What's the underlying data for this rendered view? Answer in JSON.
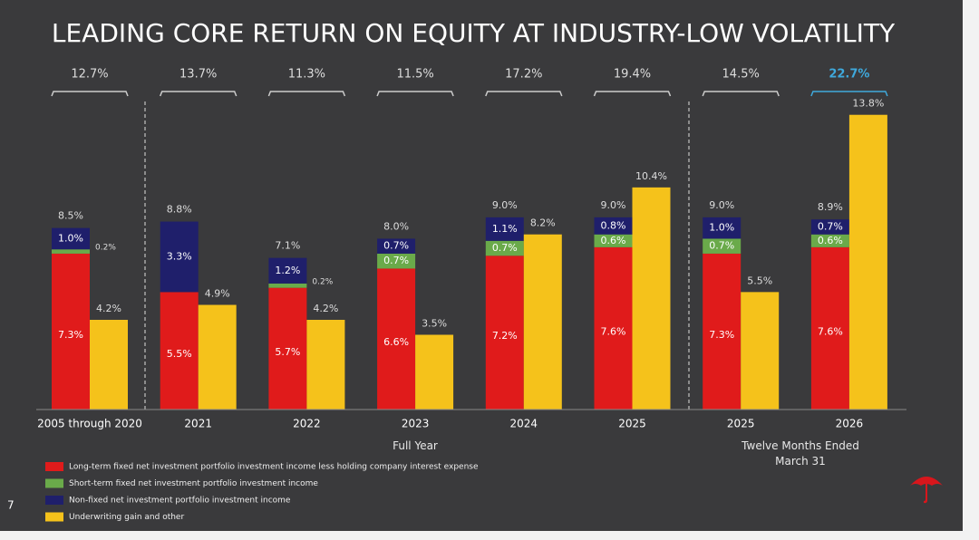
{
  "chart_data": {
    "type": "stacked_bar_with_side_bar",
    "title": "LEADING CORE RETURN ON EQUITY AT INDUSTRY-LOW VOLATILITY",
    "categories": [
      "2005 through 2020",
      "2021",
      "2022",
      "2023",
      "2024",
      "2025",
      "2025",
      "2026"
    ],
    "series": [
      {
        "name": "Long-term fixed net investment portfolio investment income less holding company interest expense",
        "color": "#e01b1b",
        "stack": "left",
        "values": [
          7.3,
          5.5,
          5.7,
          6.6,
          7.2,
          7.6,
          7.3,
          7.6
        ],
        "value_labels": [
          "7.3%",
          "5.5%",
          "5.7%",
          "6.6%",
          "7.2%",
          "7.6%",
          "7.3%",
          "7.6%"
        ]
      },
      {
        "name": "Short-term fixed net investment portfolio investment income",
        "color": "#6aaa4a",
        "stack": "left",
        "values": [
          0.2,
          null,
          0.2,
          0.7,
          0.7,
          0.6,
          0.7,
          0.6
        ],
        "value_labels": [
          "0.2%",
          null,
          "0.2%",
          "0.7%",
          "0.7%",
          "0.6%",
          "0.7%",
          "0.6%"
        ]
      },
      {
        "name": "Non-fixed net investment portfolio investment income",
        "color": "#1f1f6b",
        "stack": "left",
        "values": [
          1.0,
          3.3,
          1.2,
          0.7,
          1.1,
          0.8,
          1.0,
          0.7
        ],
        "value_labels": [
          "1.0%",
          "3.3%",
          "1.2%",
          "0.7%",
          "1.1%",
          "0.8%",
          "1.0%",
          "0.7%"
        ]
      },
      {
        "name": "Underwriting gain and other",
        "color": "#f5c21b",
        "stack": "right",
        "values": [
          4.2,
          4.9,
          4.2,
          3.5,
          8.2,
          10.4,
          5.5,
          13.8
        ],
        "value_labels": [
          "4.2%",
          "4.9%",
          "4.2%",
          "3.5%",
          "8.2%",
          "10.4%",
          "5.5%",
          "13.8%"
        ]
      }
    ],
    "stack_totals": {
      "values": [
        8.5,
        8.8,
        7.1,
        8.0,
        9.0,
        9.0,
        9.0,
        8.9
      ],
      "value_labels": [
        "8.5%",
        "8.8%",
        "7.1%",
        "8.0%",
        "9.0%",
        "9.0%",
        "9.0%",
        "8.9%"
      ]
    },
    "roe_totals": {
      "values": [
        12.7,
        13.7,
        11.3,
        11.5,
        17.2,
        19.4,
        14.5,
        22.7
      ],
      "value_labels": [
        "12.7%",
        "13.7%",
        "11.3%",
        "11.5%",
        "17.2%",
        "19.4%",
        "14.5%",
        "22.7%"
      ],
      "highlight_index": 7,
      "highlight_color": "#3fa9dc"
    },
    "period_labels": [
      "Full Year",
      "Twelve Months Ended March 31"
    ],
    "ylim": [
      0,
      14
    ],
    "page_number": "7"
  }
}
